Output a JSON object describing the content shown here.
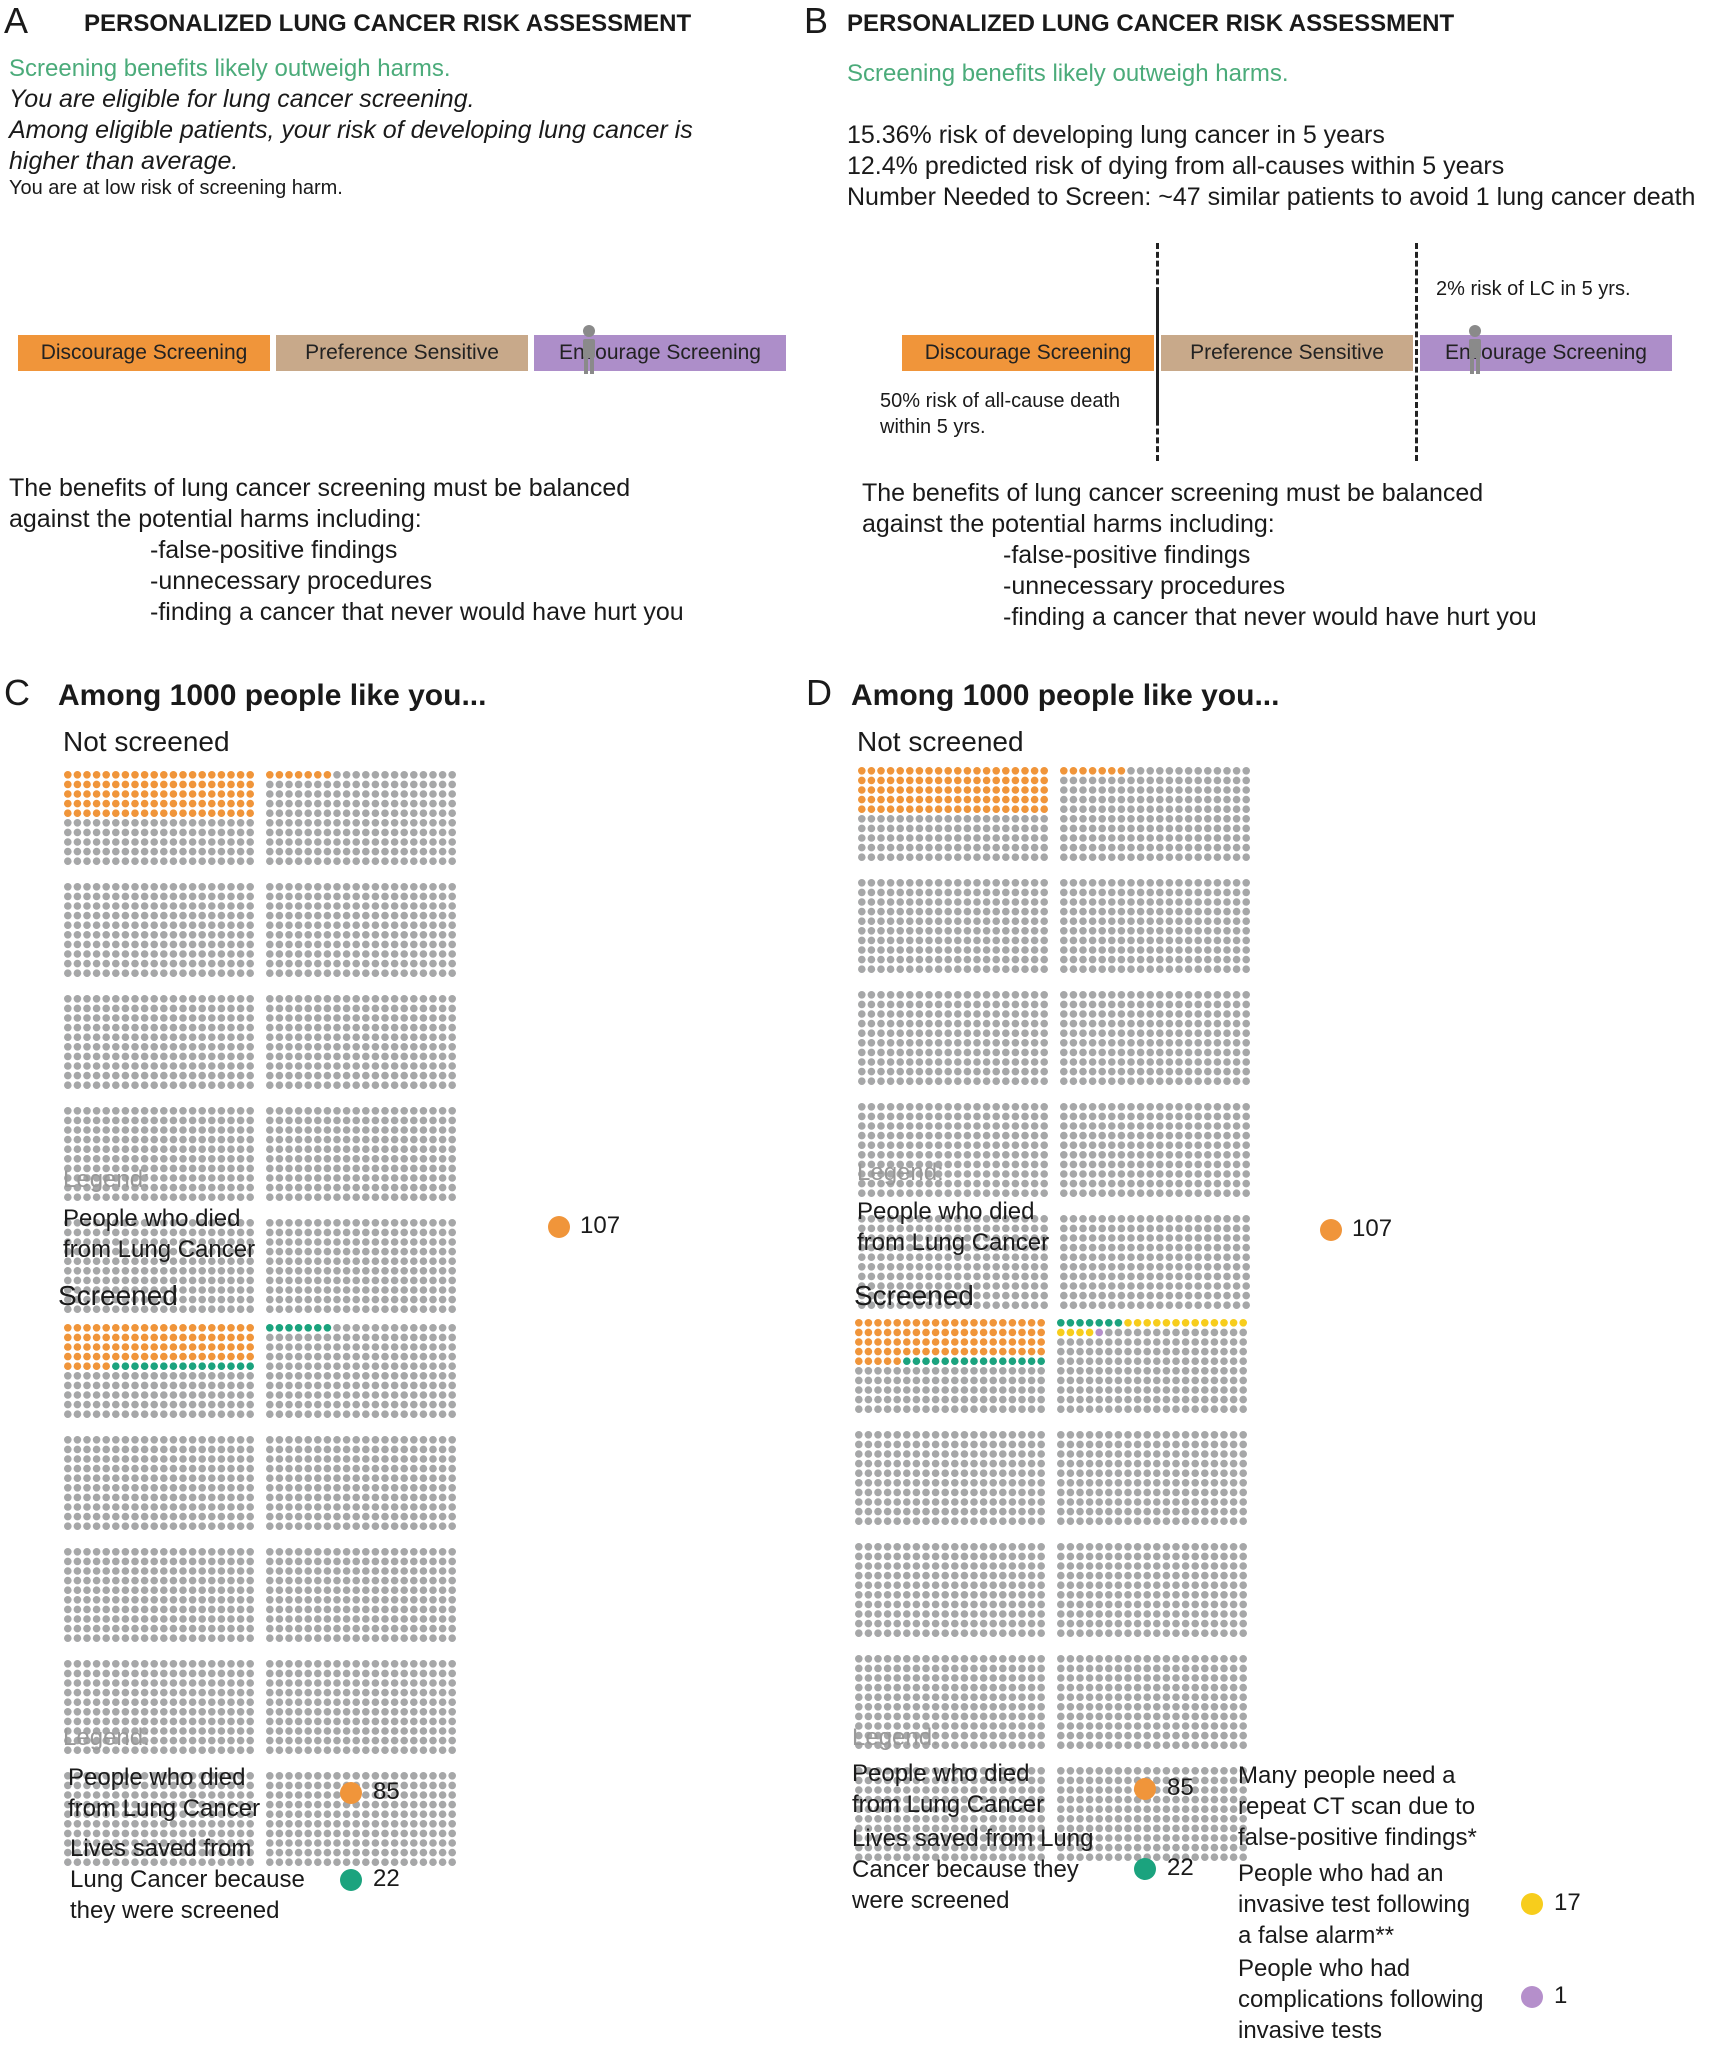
{
  "colors": {
    "orange": "#f0953a",
    "green": "#1ba37e",
    "grey": "#a6a7a8",
    "yellow": "#f7cd1c",
    "purple": "#b58fcb"
  },
  "panelA": {
    "letter": "A",
    "title": "PERSONALIZED LUNG CANCER RISK ASSESSMENT",
    "benefit": "Screening benefits likely outweigh harms.",
    "eligible": "You are eligible for lung cancer screening.",
    "risk_line1": "Among eligible patients, your risk of developing lung cancer is",
    "risk_line2": "higher than average.",
    "harm": "You are at low risk of screening harm.",
    "bands": [
      "Discourage Screening",
      "Preference Sensitive",
      "Encourage Screening"
    ],
    "body1": "The benefits of lung cancer screening must be balanced",
    "body2": "against the potential harms including:",
    "harms": [
      "-false-positive findings",
      "-unnecessary procedures",
      "-finding a cancer that never would have hurt you"
    ]
  },
  "panelB": {
    "letter": "B",
    "title": "PERSONALIZED LUNG CANCER RISK ASSESSMENT",
    "benefit": "Screening benefits likely outweigh harms.",
    "stat1": "15.36% risk of developing lung cancer in 5 years",
    "stat2": "12.4% predicted risk of dying from all-causes within 5 years",
    "stat3": "Number Needed to Screen: ~47 similar patients to avoid 1 lung cancer death",
    "lc_risk": "2% risk of LC in 5 yrs.",
    "death_risk1": "50% risk of all-cause death",
    "death_risk2": "within 5 yrs.",
    "bands": [
      "Discourage Screening",
      "Preference Sensitive",
      "Encourage Screening"
    ],
    "body1": "The benefits of lung cancer screening must be balanced",
    "body2": "against the potential harms including:",
    "harms": [
      "-false-positive findings",
      "-unnecessary procedures",
      "-finding a cancer that never would have hurt you"
    ]
  },
  "panelC": {
    "letter": "C",
    "heading": "Among 1000 people like you...",
    "not_screened": "Not screened",
    "legend": "Legend:",
    "died_1": "People who died",
    "died_2": "from Lung Cancer",
    "died_count": "107",
    "screened": "Screened",
    "legend2": "Legend:",
    "s_died_1": "People who died",
    "s_died_2": "from Lung Cancer",
    "s_died_count": "85",
    "saved_1": "Lives saved from",
    "saved_2": "Lung Cancer because",
    "saved_3": "they were screened",
    "saved_count": "22"
  },
  "panelD": {
    "letter": "D",
    "heading": "Among 1000 people like you...",
    "not_screened": "Not screened",
    "legend": "Legend:",
    "died_1": "People who died",
    "died_2": "from Lung Cancer",
    "died_count": "107",
    "screened": "Screened",
    "legend2": "Legend:",
    "s_died_1": "People who died",
    "s_died_2": "from Lung Cancer",
    "s_died_count": "85",
    "saved_1": "Lives saved from Lung",
    "saved_2": "Cancer because they",
    "saved_3": "were screened",
    "saved_count": "22",
    "repeat_1": "Many people need a",
    "repeat_2": "repeat CT scan due to",
    "repeat_3": "false-positive findings*",
    "invasive_1": "People who had an",
    "invasive_2": "invasive test following",
    "invasive_3": "a false alarm**",
    "invasive_count": "17",
    "compl_1": "People who had",
    "compl_2": "complications following",
    "compl_3": "invasive tests",
    "compl_count": "1"
  },
  "chart_data": [
    {
      "type": "waffle",
      "title": "Panel C - Not screened",
      "total": 1000,
      "categories": [
        {
          "name": "People who died from Lung Cancer",
          "value": 107,
          "color": "orange"
        }
      ]
    },
    {
      "type": "waffle",
      "title": "Panel C - Screened",
      "total": 1000,
      "categories": [
        {
          "name": "People who died from Lung Cancer",
          "value": 85,
          "color": "orange"
        },
        {
          "name": "Lives saved from Lung Cancer because they were screened",
          "value": 22,
          "color": "green"
        }
      ]
    },
    {
      "type": "waffle",
      "title": "Panel D - Not screened",
      "total": 1000,
      "categories": [
        {
          "name": "People who died from Lung Cancer",
          "value": 107,
          "color": "orange"
        }
      ]
    },
    {
      "type": "waffle",
      "title": "Panel D - Screened",
      "total": 1000,
      "categories": [
        {
          "name": "People who died from Lung Cancer",
          "value": 85,
          "color": "orange"
        },
        {
          "name": "Lives saved from Lung Cancer because they were screened",
          "value": 22,
          "color": "green"
        },
        {
          "name": "People who had an invasive test following a false alarm",
          "value": 17,
          "color": "yellow"
        },
        {
          "name": "People who had complications following invasive tests",
          "value": 1,
          "color": "purple"
        }
      ]
    }
  ]
}
